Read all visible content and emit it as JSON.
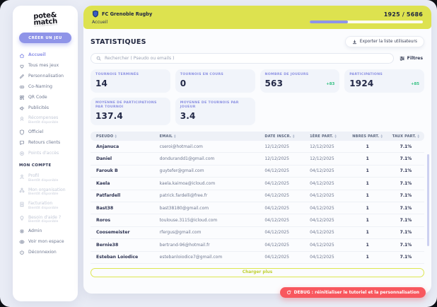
{
  "colors": {
    "lime": "#dde24f",
    "purple": "#8f94e8",
    "green": "#2fbf7f",
    "red": "#f8575e",
    "navy": "#232947"
  },
  "logo": {
    "line1": "pote&",
    "line2": "match"
  },
  "window": {
    "progress_label": "1925 / 5686",
    "progress_pct": 34
  },
  "header": {
    "club": "FC Grenoble Rugby",
    "breadcrumb": "Accueil",
    "club_icon": "shield-icon"
  },
  "sidebar": {
    "cta": "CRÉER UN JEU",
    "items": [
      {
        "label": "Accueil",
        "icon": "home-icon",
        "active": true
      },
      {
        "label": "Tous mes jeux",
        "icon": "heart-icon"
      },
      {
        "label": "Personnalisation",
        "icon": "pencil-icon"
      },
      {
        "label": "Co-Naming",
        "icon": "link-icon"
      },
      {
        "label": "QR Code",
        "icon": "qr-icon"
      },
      {
        "label": "Publicités",
        "icon": "megaphone-icon"
      },
      {
        "label": "Récompenses",
        "icon": "medal-icon",
        "disabled": true,
        "subtitle": "Bientôt disponible"
      },
      {
        "label": "Officiel",
        "icon": "badge-icon"
      },
      {
        "label": "Retours clients",
        "icon": "chat-icon"
      },
      {
        "label": "Points d'accès",
        "icon": "target-icon",
        "disabled": true
      }
    ],
    "section_label": "MON COMPTE",
    "account_items": [
      {
        "label": "Profil",
        "icon": "user-icon",
        "disabled": true,
        "subtitle": "Bientôt disponible"
      },
      {
        "label": "Mon organisation",
        "icon": "org-icon",
        "disabled": true,
        "subtitle": "Bientôt disponible"
      },
      {
        "label": "Facturation",
        "icon": "billing-icon",
        "disabled": true,
        "subtitle": "Bientôt disponible"
      },
      {
        "label": "Besoin d'aide ?",
        "icon": "bulb-icon",
        "disabled": true,
        "subtitle": "Bientôt disponible"
      },
      {
        "label": "Admin",
        "icon": "gear-icon"
      },
      {
        "label": "Voir mon espace",
        "icon": "eye-icon"
      },
      {
        "label": "Déconnexion",
        "icon": "power-icon"
      }
    ]
  },
  "main": {
    "title": "STATISTIQUES",
    "export_button": "Exporter la liste utilisateurs",
    "search_placeholder": "Rechercher ( Pseudo ou emails )",
    "filters_label": "Filtres",
    "stats": [
      {
        "label": "TOURNOIS TERMINÉS",
        "value": "14"
      },
      {
        "label": "TOURNOIS EN COURS",
        "value": "0"
      },
      {
        "label": "NOMBRE DE JOUEURS",
        "value": "563",
        "delta": "+83"
      },
      {
        "label": "PARTICIPATIONS",
        "value": "1924",
        "delta": "+85"
      },
      {
        "label": "MOYENNE DE PARTICIPATIONS PAR TOURNOI",
        "value": "137.4"
      },
      {
        "label": "MOYENNE DE TOURNOIS PAR JOUEUR",
        "value": "3.4"
      }
    ],
    "table": {
      "columns": [
        "PSEUDO",
        "EMAIL",
        "DATE INSCR.",
        "1ÈRE PART.",
        "NBRES PART.",
        "TAUX PART."
      ],
      "rows": [
        [
          "Anjanuca",
          "cseroi@hotmail.com",
          "12/12/2025",
          "12/12/2025",
          "1",
          "7.1%"
        ],
        [
          "Daniel",
          "dondurandd1@gmail.com",
          "12/12/2025",
          "12/12/2025",
          "1",
          "7.1%"
        ],
        [
          "Farouk B",
          "guytefer@gmail.com",
          "04/12/2025",
          "04/12/2025",
          "1",
          "7.1%"
        ],
        [
          "Kaela",
          "kaela.kaimoa@icloud.com",
          "04/12/2025",
          "04/12/2025",
          "1",
          "7.1%"
        ],
        [
          "Patfardell",
          "patrick.fardelli@free.fr",
          "04/12/2025",
          "04/12/2025",
          "1",
          "7.1%"
        ],
        [
          "Bast38",
          "bast38180@gmail.com",
          "04/12/2025",
          "04/12/2025",
          "1",
          "7.1%"
        ],
        [
          "Roros",
          "toulouse.3115@icloud.com",
          "04/12/2025",
          "04/12/2025",
          "1",
          "7.1%"
        ],
        [
          "Coosemeister",
          "rfergus@gmail.com",
          "04/12/2025",
          "04/12/2025",
          "1",
          "7.1%"
        ],
        [
          "Bernie38",
          "bertrand-96@hotmail.fr",
          "04/12/2025",
          "04/12/2025",
          "1",
          "7.1%"
        ],
        [
          "Esteban Loiodice",
          "estebanloiodice7@gmail.com",
          "04/12/2025",
          "04/12/2025",
          "1",
          "7.1%"
        ]
      ]
    },
    "load_more": "Charger plus",
    "debug_button": "DEBUG : réinitialiser le tutoriel et la personnalisation"
  }
}
